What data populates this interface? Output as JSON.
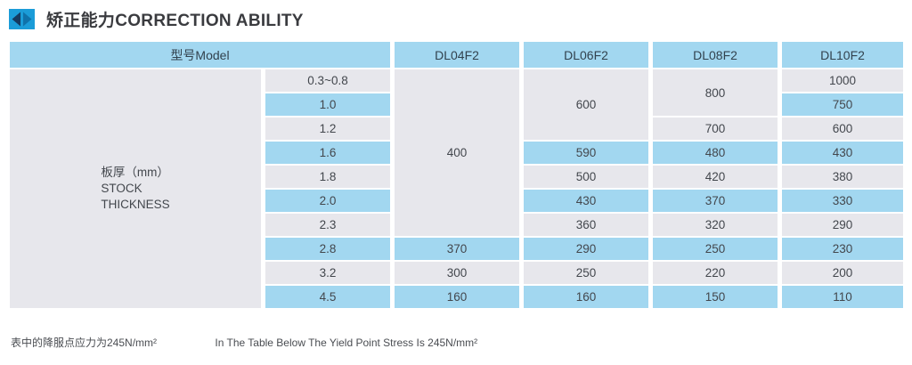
{
  "header": {
    "title": "矫正能力CORRECTION ABILITY",
    "icon": "double-triangle-bullet",
    "icon_colors": {
      "box": "#1b9cd8",
      "left_triangle": "#16395f",
      "right_triangle": "#0f72aa"
    }
  },
  "colors": {
    "row_blue": "#a2d7f0",
    "row_light": "#e7e7ec",
    "header_blue": "#a2d7f0",
    "text": "#43474d"
  },
  "table": {
    "header": {
      "model_label": "型号Model",
      "models": [
        "DL04F2",
        "DL06F2",
        "DL08F2",
        "DL10F2"
      ]
    },
    "row_label": {
      "lines": [
        "板厚（mm）",
        "STOCK",
        "THICKNESS"
      ]
    },
    "rows": [
      {
        "thickness": "0.3~0.8",
        "shade": "light",
        "cells": [
          {
            "value": "400",
            "rowspan": 7,
            "shade": "light"
          },
          {
            "value": "600",
            "rowspan": 3,
            "shade": "light"
          },
          {
            "value": "800",
            "rowspan": 2,
            "shade": "light"
          },
          {
            "value": "1000",
            "rowspan": 1,
            "shade": "light"
          }
        ]
      },
      {
        "thickness": "1.0",
        "shade": "blue",
        "cells": [
          {
            "value": "750",
            "shade": "blue"
          }
        ]
      },
      {
        "thickness": "1.2",
        "shade": "light",
        "cells": [
          {
            "value": "700",
            "shade": "light"
          },
          {
            "value": "600",
            "shade": "light"
          }
        ]
      },
      {
        "thickness": "1.6",
        "shade": "blue",
        "cells": [
          {
            "value": "590",
            "shade": "blue"
          },
          {
            "value": "480",
            "shade": "blue"
          },
          {
            "value": "430",
            "shade": "blue"
          }
        ]
      },
      {
        "thickness": "1.8",
        "shade": "light",
        "cells": [
          {
            "value": "500",
            "shade": "light"
          },
          {
            "value": "420",
            "shade": "light"
          },
          {
            "value": "380",
            "shade": "light"
          }
        ]
      },
      {
        "thickness": "2.0",
        "shade": "blue",
        "cells": [
          {
            "value": "430",
            "shade": "blue"
          },
          {
            "value": "370",
            "shade": "blue"
          },
          {
            "value": "330",
            "shade": "blue"
          }
        ]
      },
      {
        "thickness": "2.3",
        "shade": "light",
        "cells": [
          {
            "value": "360",
            "shade": "light"
          },
          {
            "value": "320",
            "shade": "light"
          },
          {
            "value": "290",
            "shade": "light"
          }
        ]
      },
      {
        "thickness": "2.8",
        "shade": "blue",
        "cells": [
          {
            "value": "370",
            "shade": "blue"
          },
          {
            "value": "290",
            "shade": "blue"
          },
          {
            "value": "250",
            "shade": "blue"
          },
          {
            "value": "230",
            "shade": "blue"
          }
        ]
      },
      {
        "thickness": "3.2",
        "shade": "light",
        "cells": [
          {
            "value": "300",
            "shade": "light"
          },
          {
            "value": "250",
            "shade": "light"
          },
          {
            "value": "220",
            "shade": "light"
          },
          {
            "value": "200",
            "shade": "light"
          }
        ]
      },
      {
        "thickness": "4.5",
        "shade": "blue",
        "cells": [
          {
            "value": "160",
            "shade": "blue"
          },
          {
            "value": "160",
            "shade": "blue"
          },
          {
            "value": "150",
            "shade": "blue"
          },
          {
            "value": "110",
            "shade": "blue"
          }
        ]
      }
    ]
  },
  "notes": {
    "cn": "表中的降服点应力为245N/mm²",
    "en": "In The Table Below The Yield Point Stress Is 245N/mm²"
  }
}
